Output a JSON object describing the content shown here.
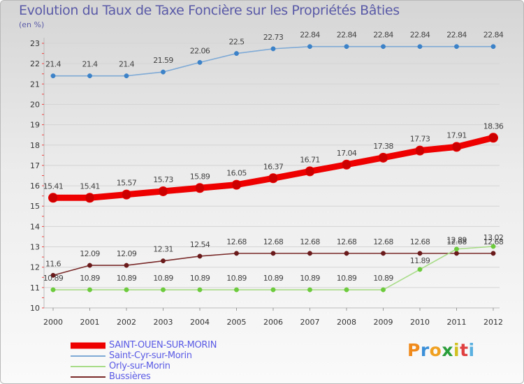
{
  "header": {
    "title": "Evolution du Taux de Taxe Foncière sur les Propriétés Bâties",
    "unit": "(en %)"
  },
  "logo": {
    "text": "Proxiti"
  },
  "chart_data": {
    "type": "line",
    "title": "Evolution du Taux de Taxe Foncière sur les Propriétés Bâties",
    "ylabel": "(en %)",
    "xlabel": "",
    "ylim": [
      10,
      23
    ],
    "yticks": [
      10,
      11,
      12,
      13,
      14,
      15,
      16,
      17,
      18,
      19,
      20,
      21,
      22,
      23
    ],
    "categories": [
      "2000",
      "2001",
      "2002",
      "2003",
      "2004",
      "2005",
      "2006",
      "2007",
      "2008",
      "2009",
      "2010",
      "2011",
      "2012"
    ],
    "legend_position": "bottom-left",
    "series": [
      {
        "name": "SAINT-OUEN-SUR-MORIN",
        "color": "#ee0000",
        "marker_color": "#cc0000",
        "values": [
          15.41,
          15.41,
          15.57,
          15.73,
          15.89,
          16.05,
          16.37,
          16.71,
          17.04,
          17.38,
          17.73,
          17.91,
          18.36
        ],
        "labels": [
          "15.41",
          "15.41",
          "15.57",
          "15.73",
          "15.89",
          "16.05",
          "16.37",
          "16.71",
          "17.04",
          "17.38",
          "17.73",
          "17.91",
          "18.36"
        ]
      },
      {
        "name": "Saint-Cyr-sur-Morin",
        "color": "#7faad6",
        "marker_color": "#3c82c8",
        "values": [
          21.4,
          21.4,
          21.4,
          21.59,
          22.06,
          22.5,
          22.73,
          22.84,
          22.84,
          22.84,
          22.84,
          22.84,
          22.84
        ],
        "labels": [
          "21.4",
          "21.4",
          "21.4",
          "21.59",
          "22.06",
          "22.5",
          "22.73",
          "22.84",
          "22.84",
          "22.84",
          "22.84",
          "22.84",
          "22.84"
        ]
      },
      {
        "name": "Orly-sur-Morin",
        "color": "#a8dc88",
        "marker_color": "#6ccb3c",
        "values": [
          10.89,
          10.89,
          10.89,
          10.89,
          10.89,
          10.89,
          10.89,
          10.89,
          10.89,
          10.89,
          11.89,
          12.89,
          13.02
        ],
        "labels": [
          "10.89",
          "10.89",
          "10.89",
          "10.89",
          "10.89",
          "10.89",
          "10.89",
          "10.89",
          "10.89",
          "10.89",
          "11.89",
          "12.89",
          "13.02"
        ]
      },
      {
        "name": "Bussières",
        "color": "#7a2a2a",
        "marker_color": "#6a1a1a",
        "values": [
          11.6,
          12.09,
          12.09,
          12.31,
          12.54,
          12.68,
          12.68,
          12.68,
          12.68,
          12.68,
          12.68,
          12.68,
          12.68
        ],
        "labels": [
          "11.6",
          "12.09",
          "12.09",
          "12.31",
          "12.54",
          "12.68",
          "12.68",
          "12.68",
          "12.68",
          "12.68",
          "12.68",
          "12.68",
          "12.68"
        ]
      }
    ]
  }
}
